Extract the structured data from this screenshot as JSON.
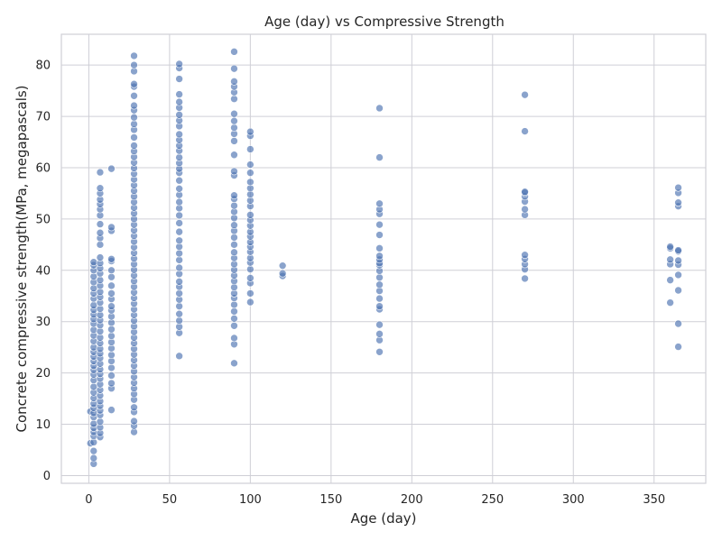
{
  "chart_data": {
    "type": "scatter",
    "title": "Age (day) vs Compressive Strength",
    "xlabel": "Age (day)",
    "ylabel": "Concrete compressive strength(MPa, megapascals)",
    "xlim": [
      -17,
      382
    ],
    "ylim": [
      -1.5,
      86
    ],
    "xticks": [
      0,
      50,
      100,
      150,
      200,
      250,
      300,
      350
    ],
    "yticks": [
      0,
      10,
      20,
      30,
      40,
      50,
      60,
      70,
      80
    ],
    "grid": true,
    "color": "#4c72b0",
    "groups": [
      {
        "x": 1,
        "y": [
          6.3,
          12.5
        ]
      },
      {
        "x": 3,
        "y": [
          2.3,
          3.4,
          4.8,
          6.5,
          7.7,
          8.5,
          9.3,
          10.1,
          11.4,
          12.2,
          13.2,
          14.0,
          15.1,
          16.2,
          17.3,
          18.6,
          19.7,
          20.6,
          21.4,
          22.3,
          23.2,
          24.1,
          25.0,
          26.2,
          27.3,
          28.4,
          29.6,
          30.5,
          31.4,
          32.3,
          33.2,
          34.5,
          35.5,
          36.5,
          37.7,
          38.8,
          40.0,
          41.0,
          41.6
        ]
      },
      {
        "x": 7,
        "y": [
          7.5,
          8.3,
          9.4,
          10.5,
          11.8,
          12.7,
          13.6,
          14.5,
          15.6,
          16.7,
          17.8,
          18.9,
          19.8,
          20.7,
          21.8,
          22.9,
          23.8,
          24.7,
          25.8,
          26.9,
          28.1,
          29.3,
          30.3,
          31.3,
          32.5,
          33.7,
          34.8,
          35.8,
          37.0,
          38.1,
          39.4,
          40.4,
          41.4,
          42.5,
          45.0,
          46.3,
          47.3,
          49.0,
          50.7,
          51.9,
          52.9,
          53.8,
          55.0,
          56.0,
          59.1
        ]
      },
      {
        "x": 14,
        "y": [
          12.8,
          17.0,
          18.0,
          19.5,
          21.0,
          22.3,
          23.5,
          24.8,
          26.0,
          27.2,
          28.5,
          29.8,
          31.0,
          32.2,
          33.0,
          34.4,
          35.5,
          37.0,
          38.7,
          40.0,
          41.8,
          42.2,
          47.7,
          48.4,
          59.8
        ]
      },
      {
        "x": 28,
        "y": [
          8.5,
          9.7,
          10.6,
          12.4,
          13.3,
          14.8,
          15.9,
          17.0,
          18.1,
          19.2,
          20.3,
          21.4,
          22.5,
          23.6,
          24.7,
          25.8,
          26.9,
          28.0,
          29.1,
          30.2,
          31.3,
          32.4,
          33.5,
          34.6,
          35.7,
          36.8,
          37.9,
          39.0,
          40.1,
          41.2,
          42.3,
          43.4,
          44.5,
          45.6,
          46.7,
          47.8,
          48.9,
          50.0,
          51.1,
          52.2,
          53.3,
          54.4,
          55.5,
          56.6,
          57.7,
          58.8,
          59.9,
          61.0,
          62.1,
          63.2,
          64.3,
          65.9,
          67.4,
          68.5,
          69.8,
          71.2,
          72.1,
          74.0,
          75.8,
          76.3,
          78.8,
          80.0,
          81.8
        ]
      },
      {
        "x": 56,
        "y": [
          23.3,
          27.8,
          29.0,
          30.2,
          31.5,
          33.0,
          34.3,
          35.5,
          36.8,
          37.8,
          39.3,
          40.5,
          42.0,
          43.3,
          44.6,
          45.8,
          47.5,
          49.2,
          50.7,
          52.1,
          53.3,
          54.7,
          55.9,
          57.5,
          59.0,
          59.8,
          60.9,
          62.0,
          63.3,
          64.3,
          65.4,
          66.5,
          68.1,
          69.2,
          70.3,
          71.7,
          72.8,
          74.3,
          77.3,
          79.4,
          80.2
        ]
      },
      {
        "x": 90,
        "y": [
          21.9,
          25.6,
          26.8,
          29.2,
          30.6,
          32.0,
          33.3,
          34.6,
          35.5,
          36.7,
          37.9,
          39.0,
          40.1,
          41.2,
          42.4,
          43.5,
          45.0,
          46.4,
          47.7,
          48.8,
          50.2,
          51.4,
          52.6,
          53.9,
          54.6,
          58.5,
          59.3,
          62.5,
          65.2,
          66.6,
          67.8,
          69.1,
          70.5,
          73.4,
          74.7,
          75.8,
          76.8,
          79.3,
          82.6
        ]
      },
      {
        "x": 100,
        "y": [
          33.8,
          35.5,
          37.5,
          38.5,
          40.2,
          41.5,
          42.4,
          43.6,
          44.6,
          45.5,
          46.6,
          47.5,
          48.7,
          49.8,
          50.8,
          52.5,
          53.6,
          54.8,
          56.0,
          57.2,
          59.0,
          60.6,
          63.6,
          66.2,
          67.0
        ]
      },
      {
        "x": 120,
        "y": [
          38.9,
          39.4,
          40.9
        ]
      },
      {
        "x": 180,
        "y": [
          24.1,
          26.4,
          27.6,
          29.4,
          32.4,
          33.0,
          34.5,
          36.0,
          37.2,
          38.6,
          39.9,
          41.0,
          41.4,
          42.1,
          42.8,
          44.3,
          46.9,
          48.9,
          51.0,
          51.9,
          53.0,
          62.0,
          71.6
        ]
      },
      {
        "x": 270,
        "y": [
          38.4,
          40.2,
          41.2,
          42.2,
          43.0,
          50.8,
          51.9,
          53.4,
          54.4,
          55.1,
          55.3,
          67.1,
          74.2
        ]
      },
      {
        "x": 360,
        "y": [
          33.7,
          38.1,
          41.2,
          42.1,
          44.3,
          44.6
        ]
      },
      {
        "x": 365,
        "y": [
          25.1,
          29.6,
          36.1,
          39.1,
          41.1,
          41.9,
          43.7,
          43.9,
          52.5,
          53.2,
          55.1,
          56.1
        ]
      }
    ]
  }
}
